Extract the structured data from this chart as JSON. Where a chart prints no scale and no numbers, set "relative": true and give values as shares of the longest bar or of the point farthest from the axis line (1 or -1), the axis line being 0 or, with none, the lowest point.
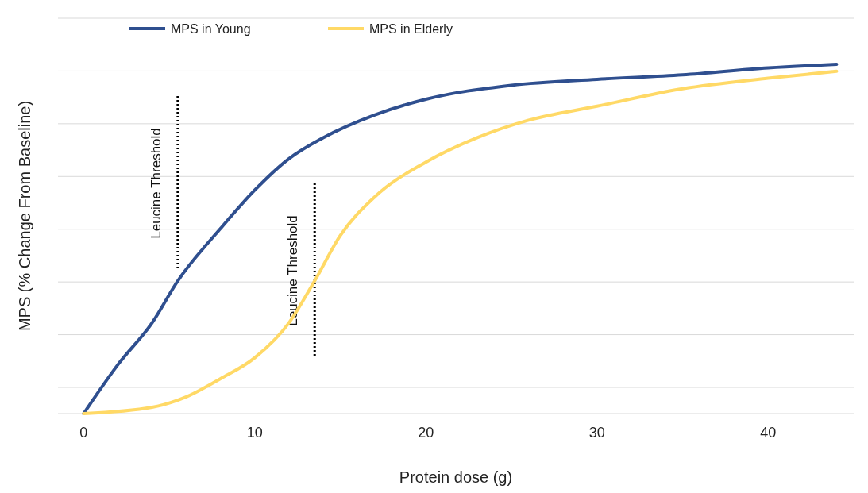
{
  "chart_data": {
    "type": "line",
    "relative": true,
    "xlabel": "Protein dose (g)",
    "ylabel": "MPS (% Change From Baseline)",
    "xlim": [
      -1.5,
      45
    ],
    "xticks": [
      0,
      10,
      20,
      30,
      40
    ],
    "grid": "y",
    "legend": "top left",
    "marker": "none",
    "line_style": "solid",
    "series": [
      {
        "name": "MPS in Young",
        "color": "#2f4f8f",
        "x": [
          0,
          2,
          4,
          5.5,
          8,
          10,
          12,
          14,
          17,
          20,
          25,
          30,
          35,
          40,
          44
        ],
        "values": [
          0,
          0.14,
          0.26,
          0.38,
          0.53,
          0.64,
          0.73,
          0.79,
          0.855,
          0.9,
          0.94,
          0.957,
          0.97,
          0.99,
          1
        ]
      },
      {
        "name": "MPS in Elderly",
        "color": "#ffd966",
        "x": [
          0,
          4,
          6,
          8,
          10,
          12,
          13.5,
          15,
          17,
          20,
          23,
          26,
          30,
          35,
          40,
          44
        ],
        "values": [
          0,
          0.018,
          0.048,
          0.1,
          0.16,
          0.26,
          0.38,
          0.51,
          0.62,
          0.72,
          0.79,
          0.84,
          0.88,
          0.93,
          0.96,
          0.98
        ]
      }
    ],
    "ref_lines": [
      {
        "axis": "x",
        "value": 5.5,
        "label": "Leucine Threshold",
        "color": "#000000",
        "line_style": "dotted"
      },
      {
        "axis": "x",
        "value": 13.5,
        "label": "Leucine Threshold",
        "color": "#000000",
        "line_style": "dotted"
      }
    ]
  }
}
